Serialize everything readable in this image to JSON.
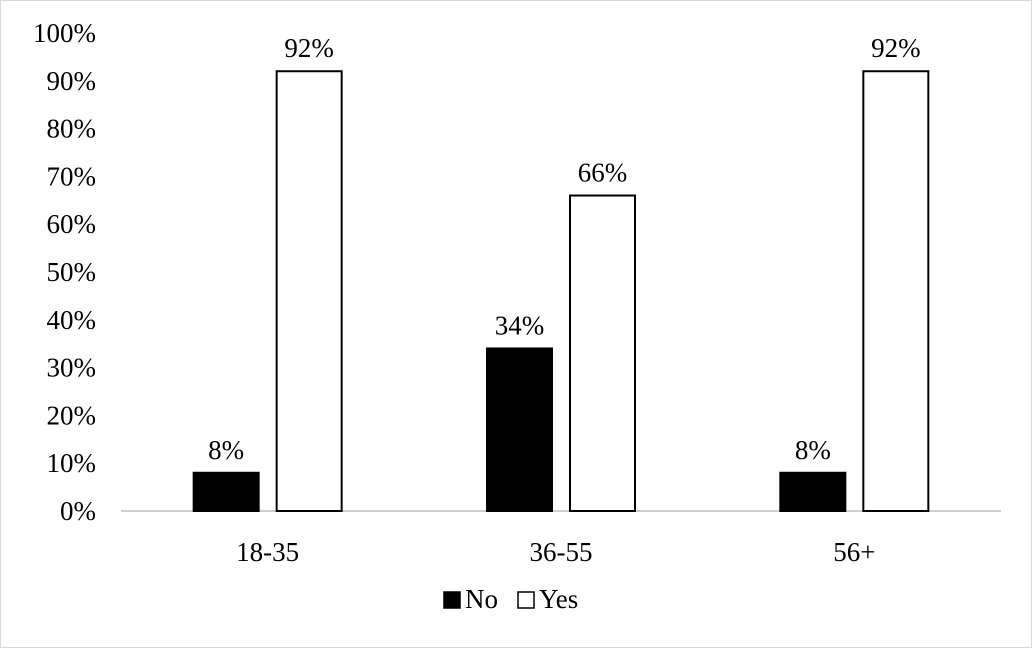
{
  "chart_data": {
    "type": "bar",
    "categories": [
      "18-35",
      "36-55",
      "56+"
    ],
    "series": [
      {
        "name": "No",
        "values": [
          8,
          34,
          8
        ],
        "color": "#000000"
      },
      {
        "name": "Yes",
        "values": [
          92,
          66,
          92
        ],
        "color": "#ffffff"
      }
    ],
    "data_labels": [
      [
        "8%",
        "34%",
        "8%"
      ],
      [
        "92%",
        "66%",
        "92%"
      ]
    ],
    "y_ticks": [
      "0%",
      "10%",
      "20%",
      "30%",
      "40%",
      "50%",
      "60%",
      "70%",
      "80%",
      "90%",
      "100%"
    ],
    "ylim": [
      0,
      100
    ],
    "title": "",
    "xlabel": "",
    "ylabel": "",
    "grid": false,
    "legend_position": "bottom",
    "legend": [
      {
        "label": "No",
        "swatch": "filled-square",
        "color": "#000000"
      },
      {
        "label": "Yes",
        "swatch": "hollow-square",
        "color": "#ffffff"
      }
    ]
  }
}
